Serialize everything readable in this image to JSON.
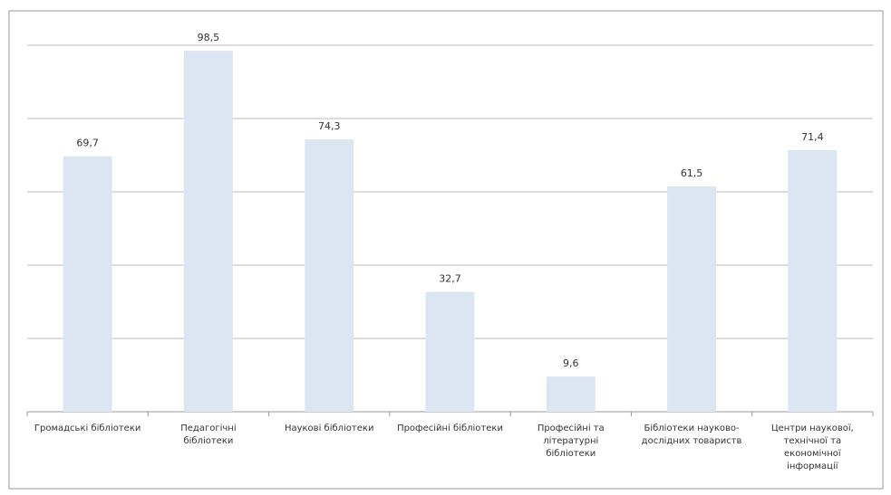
{
  "chart_data": {
    "type": "bar",
    "categories": [
      "Громадські бібліотеки",
      "Педагогічні бібліотеки",
      "Наукові бібліотеки",
      "Професійні бібліотеки",
      "Професійні та літературні бібліотеки",
      "Бібліотеки науково-дослідних товариств",
      "Центри наукової, технічної та економічної інформації"
    ],
    "values": [
      69.7,
      98.5,
      74.3,
      32.7,
      9.6,
      61.5,
      71.4
    ],
    "value_labels": [
      "69,7",
      "98,5",
      "74,3",
      "32,7",
      "9,6",
      "61,5",
      "71,4"
    ],
    "color": "#dce6f2",
    "ylim": [
      0,
      100
    ],
    "yticks": [
      0,
      20,
      40,
      60,
      80,
      100
    ],
    "grid": true
  }
}
